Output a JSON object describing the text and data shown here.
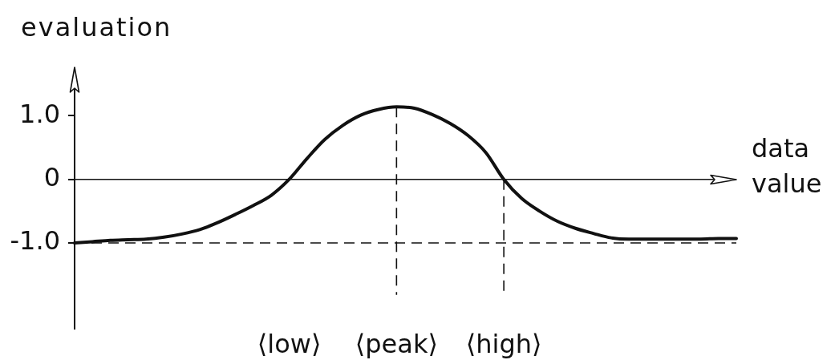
{
  "chart_data": {
    "type": "line",
    "xlabel": "data value",
    "ylabel": "evaluation",
    "categories": [
      null,
      null,
      null,
      null,
      null,
      null,
      null,
      null,
      null,
      null,
      null,
      null,
      "⟨low⟩",
      null,
      null,
      null,
      null,
      null,
      "⟨peak⟩",
      null,
      null,
      null,
      null,
      null,
      "⟨high⟩",
      null,
      null,
      null,
      null,
      null,
      null,
      null,
      null,
      null,
      null,
      null,
      null,
      null
    ],
    "values": [
      -1,
      -0.98,
      -0.96,
      -0.95,
      -0.94,
      -0.91,
      -0.86,
      -0.79,
      -0.68,
      -0.55,
      -0.41,
      -0.25,
      0,
      0.33,
      0.63,
      0.85,
      1.01,
      1.1,
      1.14,
      1.12,
      1.02,
      0.88,
      0.69,
      0.42,
      0,
      -0.3,
      -0.5,
      -0.66,
      -0.77,
      -0.85,
      -0.92,
      -0.94,
      -0.94,
      -0.94,
      -0.94,
      -0.94,
      -0.93,
      -0.93
    ],
    "color": "#111111",
    "marker": "none",
    "ylim": [
      -2.35,
      1.75
    ],
    "yticks": [
      {
        "value": -1,
        "label": "-1.0"
      },
      0,
      {
        "value": 1,
        "label": "1.0"
      }
    ],
    "ref_lines": [
      {
        "axis": "y",
        "value": 0,
        "line_style": "solid"
      },
      {
        "axis": "y",
        "value": -1,
        "line_style": "dashed"
      },
      {
        "axis": "x",
        "value": "⟨peak⟩",
        "line_style": "dashed"
      },
      {
        "axis": "x",
        "value": "⟨high⟩",
        "line_style": "dashed"
      }
    ]
  }
}
